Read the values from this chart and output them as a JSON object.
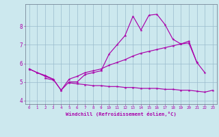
{
  "x": [
    0,
    1,
    2,
    3,
    4,
    5,
    6,
    7,
    8,
    9,
    10,
    11,
    12,
    13,
    14,
    15,
    16,
    17,
    18,
    19,
    20,
    21,
    22,
    23
  ],
  "line1": [
    5.7,
    5.5,
    5.3,
    5.15,
    4.55,
    5.0,
    5.0,
    5.4,
    5.5,
    5.6,
    6.5,
    7.0,
    7.5,
    8.55,
    7.8,
    8.6,
    8.65,
    8.1,
    7.3,
    7.05,
    7.2,
    6.05,
    null,
    null
  ],
  "line2": [
    5.7,
    5.5,
    5.35,
    5.15,
    4.55,
    5.15,
    5.3,
    5.5,
    5.6,
    5.7,
    5.9,
    6.05,
    6.2,
    6.4,
    6.55,
    6.65,
    6.75,
    6.85,
    6.95,
    7.05,
    7.1,
    6.05,
    5.5,
    null
  ],
  "line3": [
    5.7,
    null,
    5.2,
    5.1,
    null,
    4.95,
    4.9,
    4.85,
    4.8,
    4.8,
    4.75,
    4.75,
    4.7,
    4.7,
    4.65,
    4.65,
    4.65,
    4.6,
    4.6,
    4.55,
    4.55,
    4.5,
    4.45,
    4.55
  ],
  "bg_color": "#cce8ee",
  "line_color": "#aa00aa",
  "grid_color": "#99bbcc",
  "xlabel": "Windchill (Refroidissement éolien,°C)",
  "ylim": [
    3.8,
    9.2
  ],
  "xlim": [
    -0.5,
    23.5
  ],
  "xticks": [
    0,
    1,
    2,
    3,
    4,
    5,
    6,
    7,
    8,
    9,
    10,
    11,
    12,
    13,
    14,
    15,
    16,
    17,
    18,
    19,
    20,
    21,
    22,
    23
  ],
  "yticks": [
    4,
    5,
    6,
    7,
    8
  ]
}
